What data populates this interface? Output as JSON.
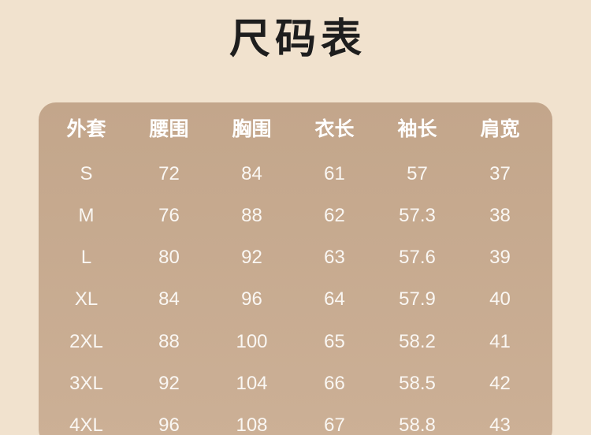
{
  "page": {
    "title": "尺码表"
  },
  "chart_data": {
    "type": "table",
    "title": "尺码表",
    "columns": [
      "外套",
      "腰围",
      "胸围",
      "衣长",
      "袖长",
      "肩宽"
    ],
    "rows": [
      [
        "S",
        "72",
        "84",
        "61",
        "57",
        "37"
      ],
      [
        "M",
        "76",
        "88",
        "62",
        "57.3",
        "38"
      ],
      [
        "L",
        "80",
        "92",
        "63",
        "57.6",
        "39"
      ],
      [
        "XL",
        "84",
        "96",
        "64",
        "57.9",
        "40"
      ],
      [
        "2XL",
        "88",
        "100",
        "65",
        "58.2",
        "41"
      ],
      [
        "3XL",
        "92",
        "104",
        "66",
        "58.5",
        "42"
      ],
      [
        "4XL",
        "96",
        "108",
        "67",
        "58.8",
        "43"
      ]
    ]
  },
  "colors": {
    "page_bg": "#f1e2ce",
    "card_top": "#c3a68b",
    "card_bottom": "#ccb096",
    "header_text": "#ffffff",
    "body_text": "#faf7f3",
    "title_text": "#1e1e1e"
  }
}
